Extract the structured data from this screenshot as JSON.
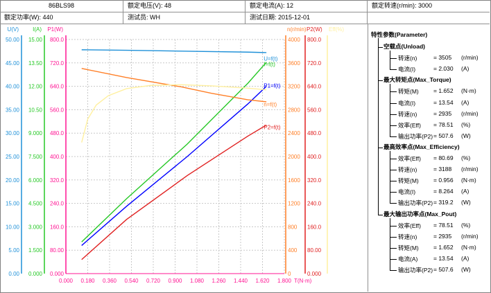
{
  "header": {
    "model": "86BLS98",
    "rated_voltage": "额定电压(V): 48",
    "rated_current": "额定电流(A): 12",
    "rated_speed": "额定转速(r/min): 3000",
    "rated_power": "额定功率(W): 440",
    "tester": "测试员: WH",
    "test_date": "测试日期: 2015-12-01"
  },
  "chart_data": {
    "type": "line",
    "xlabel": "T(N·m)",
    "xlim": [
      0,
      1.8
    ],
    "x_ticks": [
      "0.000",
      "0.180",
      "0.360",
      "0.540",
      "0.720",
      "0.900",
      "1.080",
      "1.260",
      "1.440",
      "1.620",
      "1.800"
    ],
    "axes": [
      {
        "id": "U",
        "label": "U(V)",
        "color": "#1e90d8",
        "min": 0,
        "max": 50,
        "ticks": [
          "0.00",
          "5.00",
          "10.00",
          "15.00",
          "20.00",
          "25.00",
          "30.00",
          "35.00",
          "40.00",
          "45.00",
          "50.00"
        ]
      },
      {
        "id": "I",
        "label": "I(A)",
        "color": "#26c826",
        "min": 0,
        "max": 15,
        "ticks": [
          "0.000",
          "1.500",
          "3.000",
          "4.500",
          "6.000",
          "7.500",
          "9.000",
          "10.50",
          "12.00",
          "13.50",
          "15.00"
        ]
      },
      {
        "id": "P1",
        "label": "P1(W)",
        "color": "#ff1493",
        "min": 0,
        "max": 800,
        "ticks": [
          "0.000",
          "80.00",
          "160.0",
          "240.0",
          "320.0",
          "400.0",
          "480.0",
          "560.0",
          "640.0",
          "720.0",
          "800.0"
        ]
      },
      {
        "id": "n",
        "label": "n(r/min)",
        "color": "#ff7f27",
        "min": 0,
        "max": 4000,
        "ticks": [
          "0",
          "400",
          "800",
          "1200",
          "1600",
          "2000",
          "2400",
          "2800",
          "3200",
          "3600",
          "4000"
        ]
      },
      {
        "id": "P2",
        "label": "P2(W)",
        "color": "#e02020",
        "min": 0,
        "max": 800,
        "ticks": [
          "0.000",
          "80.00",
          "160.0",
          "240.0",
          "320.0",
          "400.0",
          "480.0",
          "560.0",
          "640.0",
          "720.0",
          "800.0"
        ]
      },
      {
        "id": "Eff",
        "label": "Eff(%)",
        "color": "#fff0a0",
        "min": 0,
        "max": 100,
        "ticks": [
          "",
          "",
          "",
          "",
          "",
          "",
          "",
          "",
          "",
          "",
          ""
        ]
      }
    ],
    "series": [
      {
        "name": "U=f(t)",
        "axis": "U",
        "color": "#1e90d8",
        "label_x": 1.63,
        "label_y": 45.5,
        "x": [
          0.13,
          0.5,
          1.0,
          1.5,
          1.652
        ],
        "y": [
          47.8,
          47.7,
          47.5,
          47.3,
          47.2
        ]
      },
      {
        "name": "I=f(t)",
        "axis": "I",
        "color": "#26c826",
        "label_x": 1.63,
        "label_y": 13.3,
        "x": [
          0.13,
          0.5,
          1.0,
          1.5,
          1.652
        ],
        "y": [
          2.03,
          4.8,
          8.3,
          12.2,
          13.54
        ]
      },
      {
        "name": "P1=f(t)",
        "axis": "P1",
        "color": "#0000ff",
        "label_x": 1.63,
        "label_y": 635,
        "x": [
          0.13,
          0.5,
          1.0,
          1.5,
          1.652
        ],
        "y": [
          96,
          230,
          400,
          580,
          640
        ]
      },
      {
        "name": "n=f(t)",
        "axis": "n",
        "color": "#ff7f27",
        "label_x": 1.63,
        "label_y": 2860,
        "x": [
          0.13,
          0.5,
          0.956,
          1.2,
          1.5,
          1.652
        ],
        "y": [
          3505,
          3350,
          3188,
          3080,
          2970,
          2935
        ]
      },
      {
        "name": "P2=f(t)",
        "axis": "P2",
        "color": "#e02020",
        "label_x": 1.63,
        "label_y": 494,
        "x": [
          0.13,
          0.5,
          1.0,
          1.5,
          1.652
        ],
        "y": [
          48,
          185,
          335,
          470,
          507.6
        ]
      },
      {
        "name": "",
        "axis": "Eff",
        "color": "#fff0a0",
        "x": [
          0.13,
          0.18,
          0.25,
          0.35,
          0.5,
          0.7,
          0.956,
          1.2,
          1.5,
          1.652
        ],
        "y": [
          56,
          66,
          72,
          76,
          79,
          80.4,
          80.69,
          80.2,
          79.2,
          78.51
        ]
      }
    ]
  },
  "params": {
    "title": "特性参数(Parameter)",
    "sections": [
      {
        "title": "空载点(Unload)",
        "items": [
          {
            "label": "转速(n)",
            "value": "= 3505",
            "unit": "(r/min)"
          },
          {
            "label": "电流(I)",
            "value": "= 2.030",
            "unit": "(A)"
          }
        ]
      },
      {
        "title": "最大转矩点(Max_Torque)",
        "items": [
          {
            "label": "转矩(M)",
            "value": "= 1.652",
            "unit": "(N·m)"
          },
          {
            "label": "电流(I)",
            "value": "= 13.54",
            "unit": "(A)"
          },
          {
            "label": "转速(n)",
            "value": "= 2935",
            "unit": "(r/min)"
          },
          {
            "label": "效率(Eff)",
            "value": "= 78.51",
            "unit": "(%)"
          },
          {
            "label": "输出功率(P2)",
            "value": "= 507.6",
            "unit": "(W)"
          }
        ]
      },
      {
        "title": "最高效率点(Max_Efficiency)",
        "items": [
          {
            "label": "效率(Eff)",
            "value": "= 80.69",
            "unit": "(%)"
          },
          {
            "label": "转速(n)",
            "value": "= 3188",
            "unit": "(r/min)"
          },
          {
            "label": "转矩(M)",
            "value": "= 0.956",
            "unit": "(N·m)"
          },
          {
            "label": "电流(I)",
            "value": "= 8.264",
            "unit": "(A)"
          },
          {
            "label": "输出功率(P2)",
            "value": "= 319.2",
            "unit": "(W)"
          }
        ]
      },
      {
        "title": "最大输出功率点(Max_Pout)",
        "items": [
          {
            "label": "效率(Eff)",
            "value": "= 78.51",
            "unit": "(%)"
          },
          {
            "label": "转速(n)",
            "value": "= 2935",
            "unit": "(r/min)"
          },
          {
            "label": "转矩(M)",
            "value": "= 1.652",
            "unit": "(N·m)"
          },
          {
            "label": "电流(A)",
            "value": "= 13.54",
            "unit": "(A)"
          },
          {
            "label": "输出功率(P2)",
            "value": "= 507.6",
            "unit": "(W)"
          }
        ]
      }
    ]
  }
}
